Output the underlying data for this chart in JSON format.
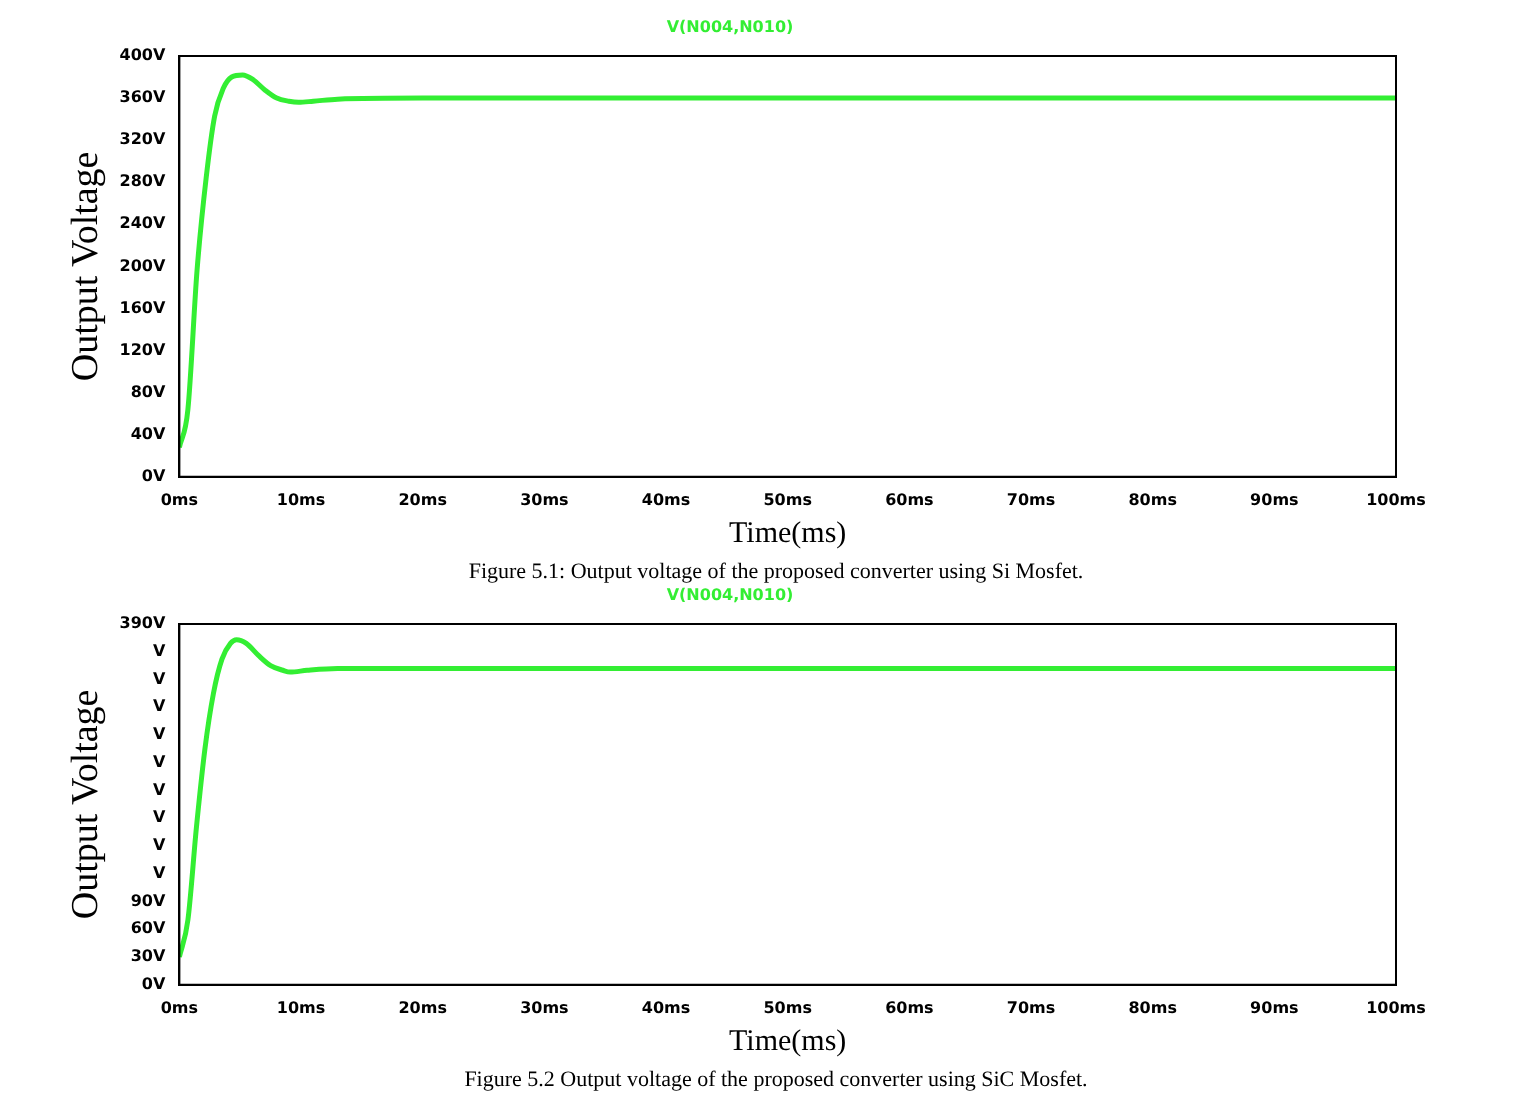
{
  "chart_data": [
    {
      "type": "line",
      "xlabel": "Time(ms)",
      "ylabel": "Output Voltage",
      "legend": "top",
      "grid": false,
      "x": [
        0,
        0.7,
        1.45,
        2.2,
        2.9,
        3.6,
        4.3,
        5.2,
        6,
        7,
        8,
        9,
        9.8,
        11,
        13,
        20,
        40,
        60,
        80,
        100
      ],
      "series": [
        {
          "name": "V(N004,N010)",
          "color": "#33ee33",
          "values": [
            28,
            64,
            196,
            284,
            343,
            369,
            380,
            382,
            378,
            368,
            360,
            357,
            356,
            357,
            359,
            360,
            360,
            360,
            360,
            360
          ]
        }
      ],
      "xlim": [
        0,
        100
      ],
      "xticks": [
        {
          "value": 0,
          "label": "0ms"
        },
        {
          "value": 10,
          "label": "10ms"
        },
        {
          "value": 20,
          "label": "20ms"
        },
        {
          "value": 30,
          "label": "30ms"
        },
        {
          "value": 40,
          "label": "40ms"
        },
        {
          "value": 50,
          "label": "50ms"
        },
        {
          "value": 60,
          "label": "60ms"
        },
        {
          "value": 70,
          "label": "70ms"
        },
        {
          "value": 80,
          "label": "80ms"
        },
        {
          "value": 90,
          "label": "90ms"
        },
        {
          "value": 100,
          "label": "100ms"
        }
      ],
      "ylim": [
        0,
        400
      ],
      "yticks": [
        {
          "value": 0,
          "label": "0V"
        },
        {
          "value": 40,
          "label": "40V"
        },
        {
          "value": 80,
          "label": "80V"
        },
        {
          "value": 120,
          "label": "120V"
        },
        {
          "value": 160,
          "label": "160V"
        },
        {
          "value": 200,
          "label": "200V"
        },
        {
          "value": 240,
          "label": "240V"
        },
        {
          "value": 280,
          "label": "280V"
        },
        {
          "value": 320,
          "label": "320V"
        },
        {
          "value": 360,
          "label": "360V"
        },
        {
          "value": 400,
          "label": "400V"
        }
      ],
      "annotations": [
        "Figure 5.1: Output voltage of the proposed converter using Si Mosfet."
      ]
    },
    {
      "type": "line",
      "xlabel": "Time(ms)",
      "ylabel": "Output Voltage",
      "legend": "top",
      "grid": false,
      "x": [
        0,
        0.7,
        1.4,
        2.1,
        2.8,
        3.5,
        4.2,
        4.7,
        5.5,
        6.5,
        7.5,
        8.5,
        9.1,
        10.5,
        13,
        20,
        40,
        60,
        80,
        100
      ],
      "series": [
        {
          "name": "V(N004,N010)",
          "color": "#33ee33",
          "values": [
            30,
            70,
            170,
            255,
            315,
            352,
            369,
            373,
            369,
            356,
            345,
            340,
            338,
            340,
            342,
            342,
            342,
            342,
            342,
            342
          ]
        }
      ],
      "xlim": [
        0,
        100
      ],
      "xticks": [
        {
          "value": 0,
          "label": "0ms"
        },
        {
          "value": 10,
          "label": "10ms"
        },
        {
          "value": 20,
          "label": "20ms"
        },
        {
          "value": 30,
          "label": "30ms"
        },
        {
          "value": 40,
          "label": "40ms"
        },
        {
          "value": 50,
          "label": "50ms"
        },
        {
          "value": 60,
          "label": "60ms"
        },
        {
          "value": 70,
          "label": "70ms"
        },
        {
          "value": 80,
          "label": "80ms"
        },
        {
          "value": 90,
          "label": "90ms"
        },
        {
          "value": 100,
          "label": "100ms"
        }
      ],
      "ylim": [
        0,
        390
      ],
      "yticks": [
        {
          "value": 0,
          "label": "0V"
        },
        {
          "value": 30,
          "label": "30V"
        },
        {
          "value": 60,
          "label": "60V"
        },
        {
          "value": 90,
          "label": "90V"
        },
        {
          "value": 120,
          "label": "V"
        },
        {
          "value": 150,
          "label": "V"
        },
        {
          "value": 180,
          "label": "V"
        },
        {
          "value": 210,
          "label": "V"
        },
        {
          "value": 240,
          "label": "V"
        },
        {
          "value": 270,
          "label": "V"
        },
        {
          "value": 300,
          "label": "V"
        },
        {
          "value": 330,
          "label": "V"
        },
        {
          "value": 360,
          "label": "V"
        },
        {
          "value": 390,
          "label": "390V"
        }
      ],
      "annotations": [
        "Figure 5.2  Output voltage of the proposed converter using SiC Mosfet."
      ]
    }
  ]
}
